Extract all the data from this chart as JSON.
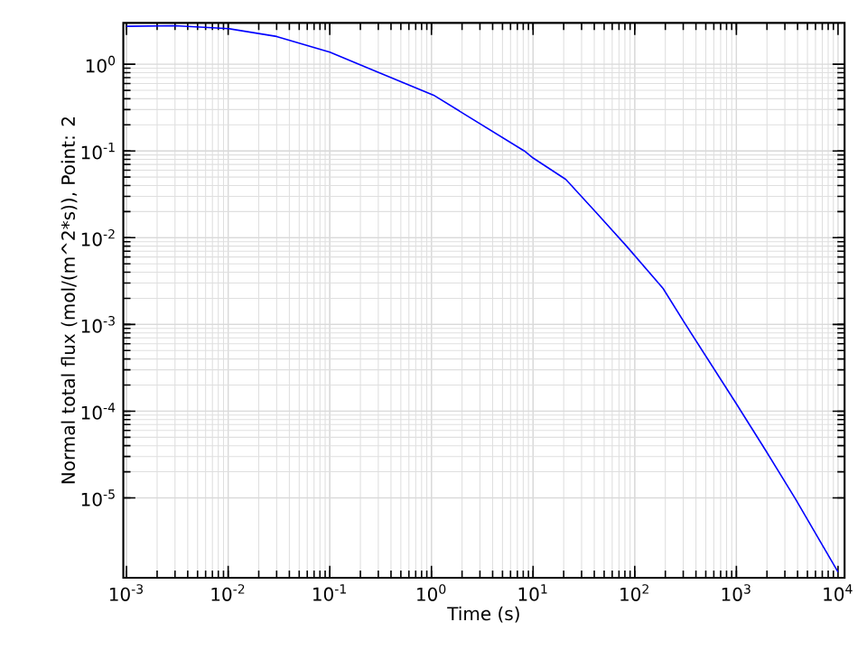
{
  "chart_data": {
    "type": "line",
    "xlabel": "Time (s)",
    "ylabel": "Normal total flux (mol/(m^2*s)), Point: 2",
    "x": [
      0.001,
      0.003,
      0.0102,
      0.03,
      0.1,
      0.27,
      1.05,
      8.2,
      10,
      21,
      42.6,
      83,
      190,
      316,
      980,
      1950,
      3800,
      10000
    ],
    "series": [
      {
        "color": "#0000ff",
        "values": [
          2.74,
          2.78,
          2.57,
          2.09,
          1.38,
          0.85,
          0.44,
          0.1,
          0.083,
          0.047,
          0.019,
          0.008,
          0.0026,
          0.001,
          0.000126,
          3.5e-05,
          9.8e-06,
          1.4e-06
        ]
      }
    ],
    "log": "xy",
    "grid": true,
    "marker": "none",
    "line_style": "solid",
    "xlim": [
      0.00093,
      11600
    ],
    "ylim": [
      1.2e-06,
      3.0
    ],
    "xticks": [
      {
        "value": 0.001,
        "label": "10$^{-3}$"
      },
      {
        "value": 0.01,
        "label": "10$^{-2}$"
      },
      {
        "value": 0.1,
        "label": "10$^{-1}$"
      },
      {
        "value": 1,
        "label": "10$^{0}$"
      },
      {
        "value": 10,
        "label": "10$^{1}$"
      },
      {
        "value": 100,
        "label": "10$^{2}$"
      },
      {
        "value": 1000,
        "label": "10$^{3}$"
      },
      {
        "value": 10000,
        "label": "10$^{4}$"
      }
    ],
    "yticks": [
      {
        "value": 1e-05,
        "label": "10$^{-5}$"
      },
      {
        "value": 0.0001,
        "label": "10$^{-4}$"
      },
      {
        "value": 0.001,
        "label": "10$^{-3}$"
      },
      {
        "value": 0.01,
        "label": "10$^{-2}$"
      },
      {
        "value": 0.1,
        "label": "10$^{-1}$"
      },
      {
        "value": 1,
        "label": "10$^{0}$"
      }
    ]
  }
}
